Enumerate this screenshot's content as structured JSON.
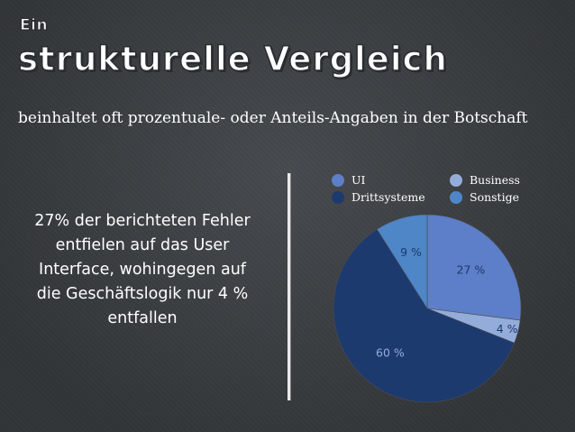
{
  "kicker": "Ein",
  "title": "strukturelle Vergleich",
  "subtitle": "beinhaltet oft prozentuale- oder Anteils-Angaben in der Botschaft",
  "callout": "27% der berichteten Fehler entfielen auf das User Interface, wohingegen auf die Geschäftslogik nur 4 % entfallen",
  "legend": [
    {
      "label": "UI",
      "color": "#5d7ec8"
    },
    {
      "label": "Business",
      "color": "#94acd9"
    },
    {
      "label": "Drittsysteme",
      "color": "#1d3a6e"
    },
    {
      "label": "Sonstige",
      "color": "#4e86c7"
    }
  ],
  "chart_data": {
    "type": "pie",
    "title": "",
    "slices": [
      {
        "name": "UI",
        "value": 27,
        "label": "27 %",
        "color": "#5d7ec8",
        "label_color": "#1d3a6e"
      },
      {
        "name": "Business",
        "value": 4,
        "label": "4 %",
        "color": "#94acd9",
        "label_color": "#1d3a6e"
      },
      {
        "name": "Drittsysteme",
        "value": 60,
        "label": "60 %",
        "color": "#1d3a6e",
        "label_color": "#94acd9"
      },
      {
        "name": "Sonstige",
        "value": 9,
        "label": "9 %",
        "color": "#4e86c7",
        "label_color": "#1d3a6e"
      }
    ],
    "legend_position": "top"
  }
}
